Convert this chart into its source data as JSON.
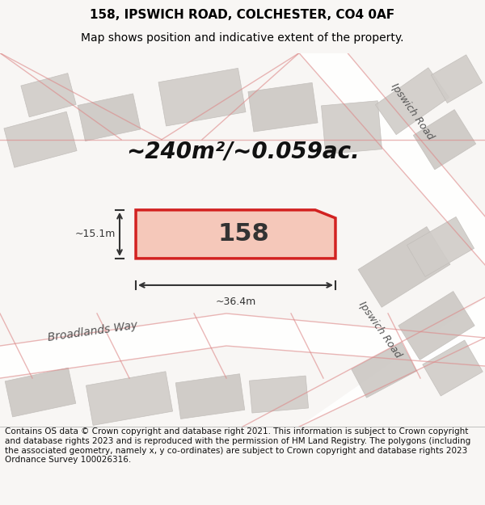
{
  "title_line1": "158, IPSWICH ROAD, COLCHESTER, CO4 0AF",
  "title_line2": "Map shows position and indicative extent of the property.",
  "area_text": "~240m²/~0.059ac.",
  "property_number": "158",
  "dim_width": "~36.4m",
  "dim_height": "~15.1m",
  "footer_text": "Contains OS data © Crown copyright and database right 2021. This information is subject to Crown copyright and database rights 2023 and is reproduced with the permission of HM Land Registry. The polygons (including the associated geometry, namely x, y co-ordinates) are subject to Crown copyright and database rights 2023 Ordnance Survey 100026316.",
  "bg_color": "#f0eeec",
  "map_bg": "#e8e4e0",
  "road_color": "#ffffff",
  "property_fill": "#f5c0b0",
  "property_edge": "#cc0000",
  "street_label_broadlands": "Broadlands Way",
  "street_label_ipswich1": "Ipswich Road",
  "street_label_ipswich2": "Ipswich Road",
  "dim_line_color": "#333333",
  "text_color": "#000000",
  "title_fontsize": 11,
  "subtitle_fontsize": 10,
  "area_fontsize": 20,
  "footer_fontsize": 7.5
}
